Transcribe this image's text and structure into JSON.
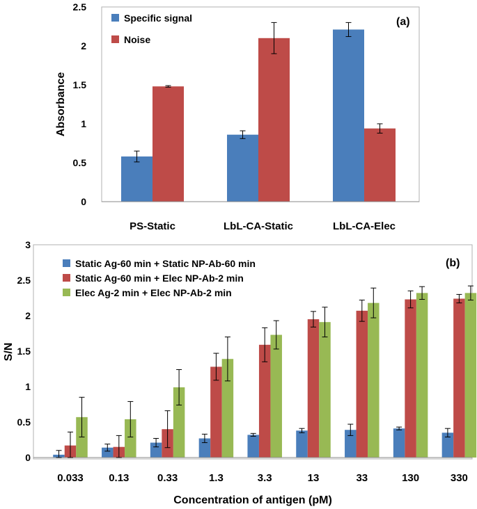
{
  "chart_data": [
    {
      "type": "bar",
      "panel_label": "(a)",
      "categories": [
        "PS-Static",
        "LbL-CA-Static",
        "LbL-CA-Elec"
      ],
      "series": [
        {
          "name": "Specific signal",
          "color": "#4a7ebb",
          "values": [
            0.58,
            0.86,
            2.21
          ],
          "errors": [
            0.07,
            0.05,
            0.09
          ]
        },
        {
          "name": "Noise",
          "color": "#be4b48",
          "values": [
            1.48,
            2.1,
            0.94
          ],
          "errors": [
            0.01,
            0.2,
            0.06
          ]
        }
      ],
      "ylabel": "Absorbance",
      "xlabel": "",
      "ylim": [
        0,
        2.5
      ],
      "yticks": [
        "0",
        "0.5",
        "1",
        "1.5",
        "2",
        "2.5"
      ],
      "legend_position": "top-left",
      "grid": false
    },
    {
      "type": "bar",
      "panel_label": "(b)",
      "categories": [
        "0.033",
        "0.13",
        "0.33",
        "1.3",
        "3.3",
        "13",
        "33",
        "130",
        "330"
      ],
      "series": [
        {
          "name": "Static Ag-60 min + Static NP-Ab-60 min",
          "color": "#4a7ebb",
          "values": [
            0.04,
            0.14,
            0.21,
            0.27,
            0.32,
            0.38,
            0.39,
            0.41,
            0.35
          ],
          "errors": [
            0.06,
            0.05,
            0.06,
            0.06,
            0.02,
            0.03,
            0.08,
            0.02,
            0.06
          ]
        },
        {
          "name": "Static Ag-60 min + Elec NP-Ab-2 min",
          "color": "#be4b48",
          "values": [
            0.17,
            0.15,
            0.4,
            1.28,
            1.59,
            1.95,
            2.07,
            2.23,
            2.24
          ],
          "errors": [
            0.19,
            0.16,
            0.26,
            0.19,
            0.24,
            0.11,
            0.15,
            0.12,
            0.06
          ]
        },
        {
          "name": "Elec Ag-2 min + Elec NP-Ab-2 min",
          "color": "#98b954",
          "values": [
            0.57,
            0.54,
            0.99,
            1.39,
            1.73,
            1.91,
            2.18,
            2.32,
            2.32
          ],
          "errors": [
            0.28,
            0.25,
            0.25,
            0.31,
            0.2,
            0.21,
            0.21,
            0.09,
            0.1
          ]
        }
      ],
      "ylabel": "S/N",
      "xlabel": "Concentration of antigen (pM)",
      "ylim": [
        0,
        3
      ],
      "yticks": [
        "0",
        "0.5",
        "1",
        "1.5",
        "2",
        "2.5",
        "3"
      ],
      "legend_position": "top-left",
      "grid": false
    }
  ]
}
